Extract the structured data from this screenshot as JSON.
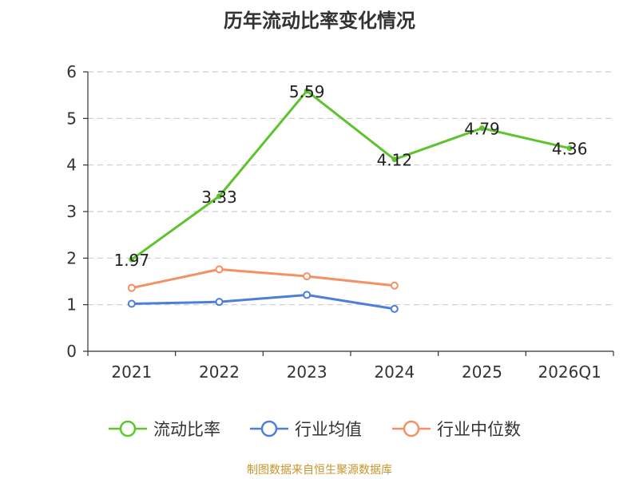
{
  "chart_data": {
    "type": "line",
    "title": "历年流动比率变化情况",
    "source": "制图数据来自恒生聚源数据库",
    "categories": [
      "2021",
      "2022",
      "2023",
      "2024",
      "2025",
      "2026Q1"
    ],
    "ylim": [
      0,
      6
    ],
    "yticks": [
      0,
      1,
      2,
      3,
      4,
      5,
      6
    ],
    "grid": true,
    "legend_position": "bottom",
    "series": [
      {
        "name": "流动比率",
        "color": "#5ec32e",
        "values": [
          1.97,
          3.33,
          5.59,
          4.12,
          4.79,
          4.36
        ],
        "labels": [
          "1.97",
          "3.33",
          "5.59",
          "4.12",
          "4.79",
          "4.36"
        ]
      },
      {
        "name": "行业均值",
        "color": "#4e7fd8",
        "values": [
          1.02,
          1.06,
          1.21,
          0.91,
          null,
          null
        ]
      },
      {
        "name": "行业中位数",
        "color": "#f59064",
        "values": [
          1.36,
          1.76,
          1.61,
          1.41,
          null,
          null
        ]
      }
    ]
  }
}
